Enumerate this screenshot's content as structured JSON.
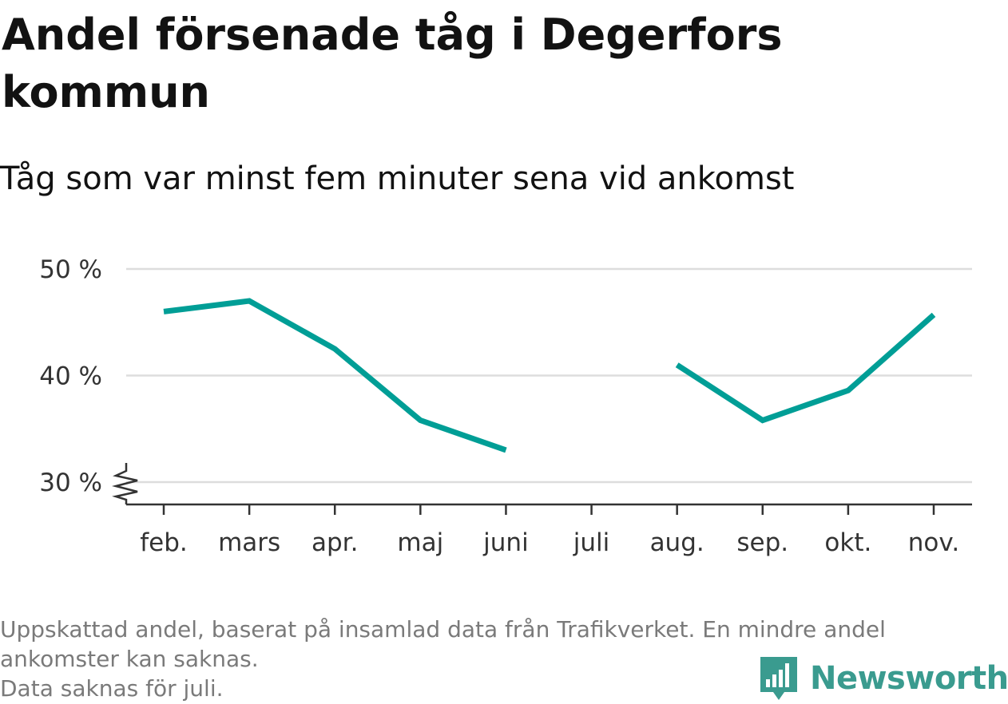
{
  "title": "Andel försenade tåg i Degerfors kommun",
  "subtitle": "Tåg som var minst fem minuter sena vid ankomst",
  "footnote": {
    "line1": "Uppskattad andel, baserat på insamlad data från Trafikverket. En mindre andel",
    "line2": "ankomster kan saknas.",
    "line3": "Data saknas för juli."
  },
  "logo": {
    "text": "Newsworthy",
    "icon": "bar-chart-speech-bubble-icon"
  },
  "colors": {
    "line": "#009e96",
    "grid": "#dddddd",
    "axis": "#333333",
    "logo": "#3a9b8f"
  },
  "chart_data": {
    "type": "line",
    "title": "Andel försenade tåg i Degerfors kommun",
    "subtitle": "Tåg som var minst fem minuter sena vid ankomst",
    "categories": [
      "feb.",
      "mars",
      "apr.",
      "maj",
      "juni",
      "juli",
      "aug.",
      "sep.",
      "okt.",
      "nov."
    ],
    "series": [
      {
        "values": [
          46.0,
          47.0,
          42.5,
          35.8,
          33.0,
          null,
          41.0,
          35.8,
          38.6,
          45.7
        ]
      }
    ],
    "ylim": [
      30,
      50
    ],
    "yticks": [
      30,
      40,
      50
    ],
    "ytick_labels": [
      "30 %",
      "40 %",
      "50 %"
    ],
    "grid": true,
    "axis_break": true
  }
}
